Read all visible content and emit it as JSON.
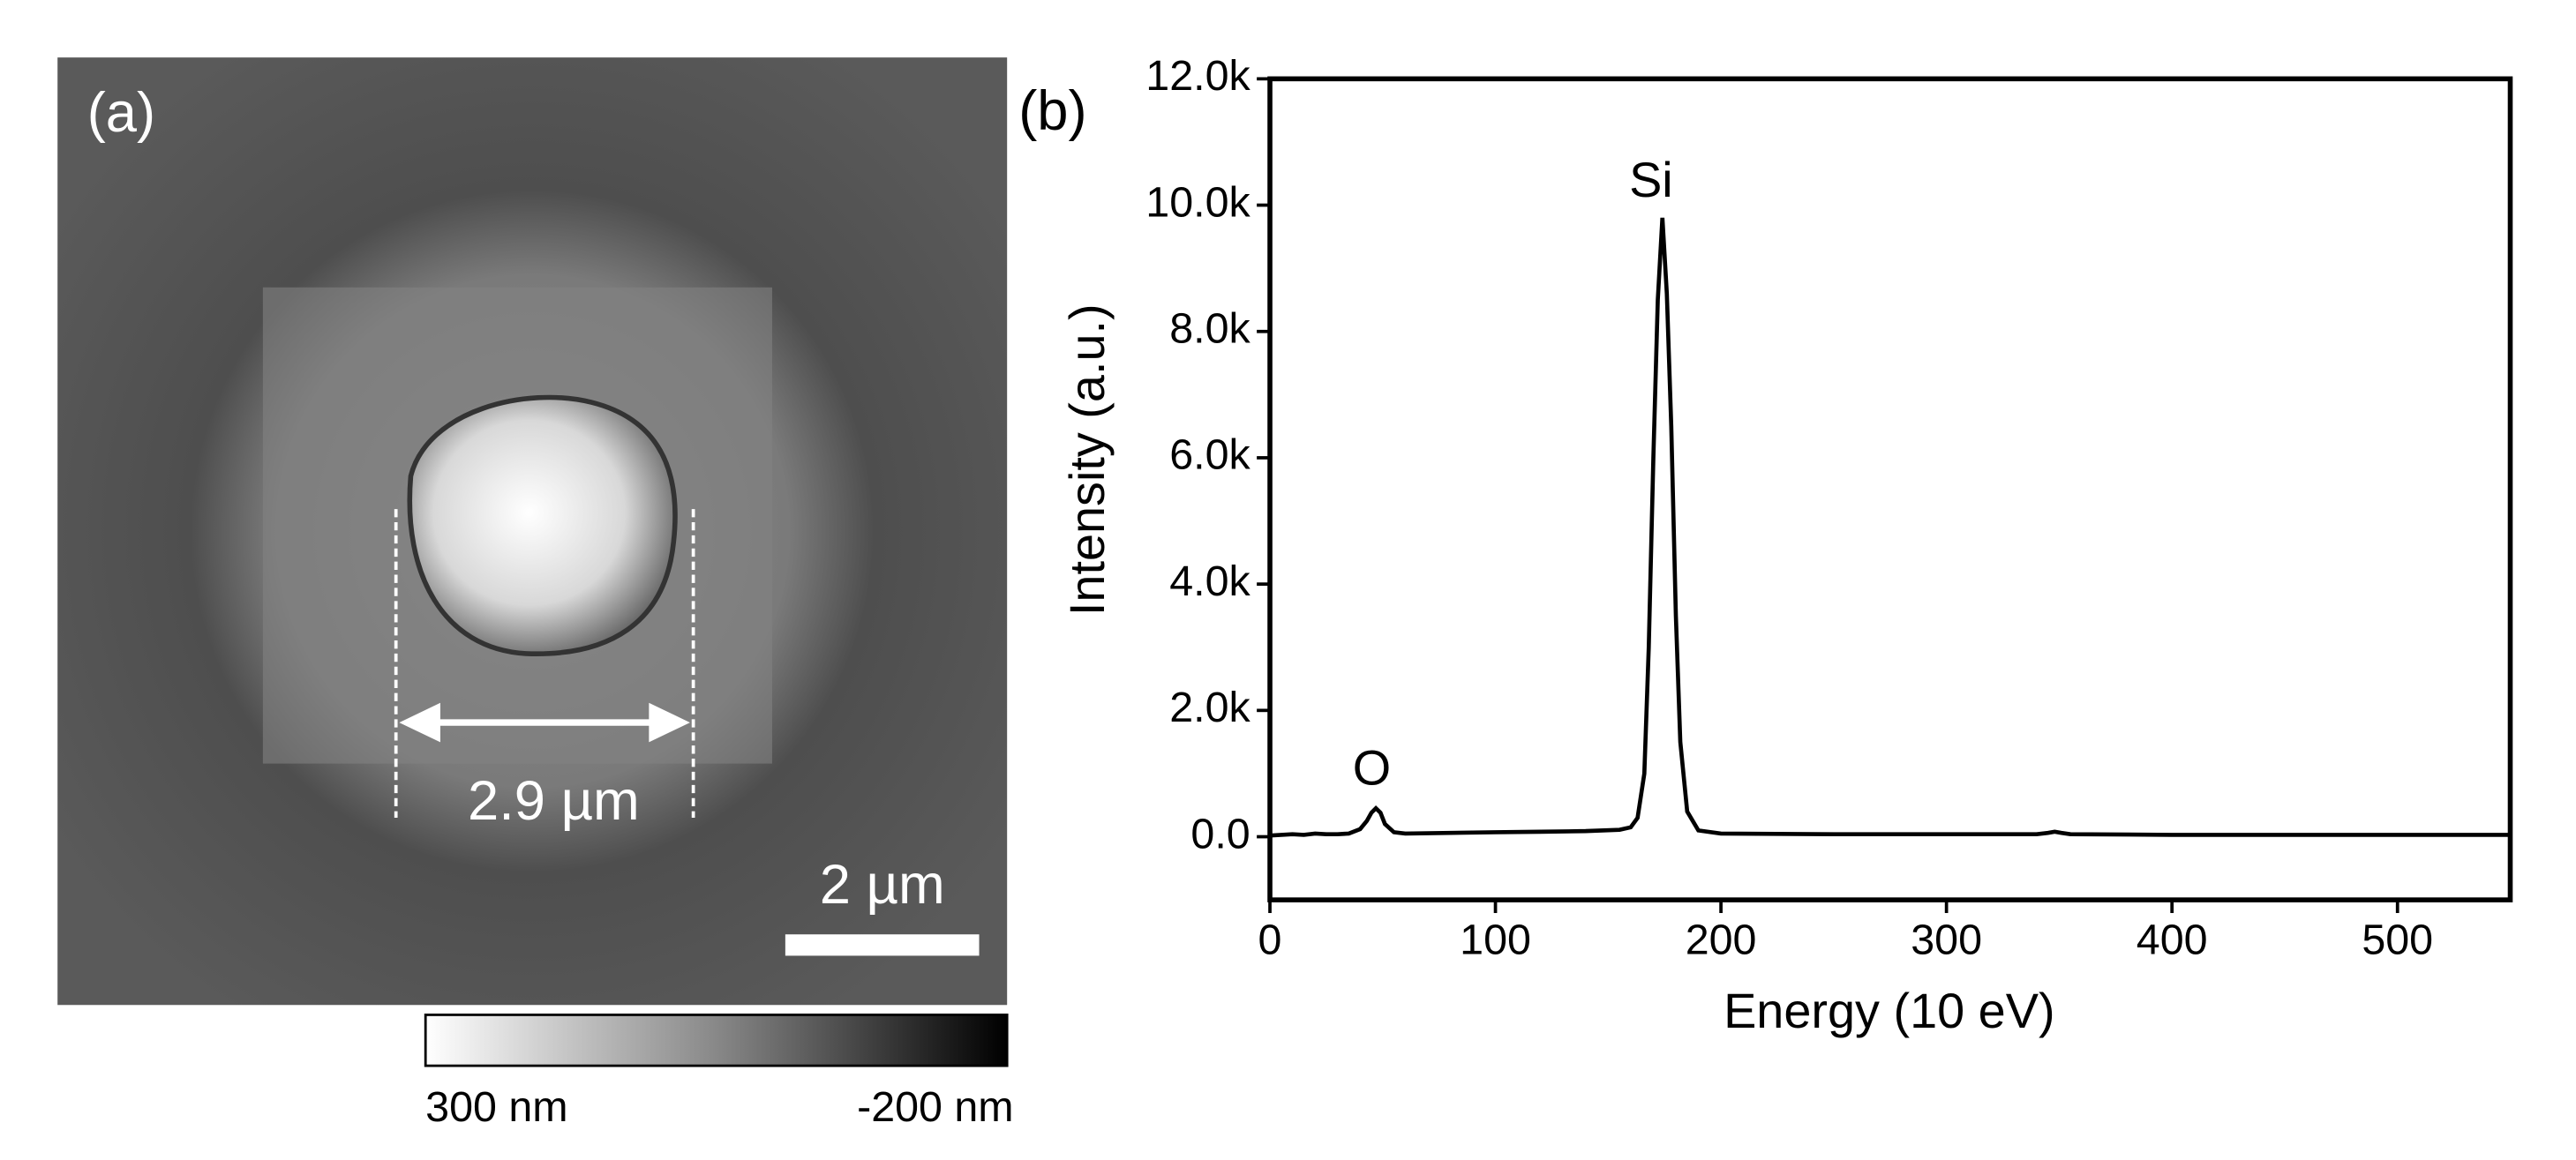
{
  "image_panel": {
    "label": "(a)",
    "measurement": "2.9 µm",
    "scale_bar": "2 µm",
    "colorbar": {
      "max_label": "300 nm",
      "min_label": "-200 nm"
    }
  },
  "chart_data": {
    "type": "line",
    "panel_label": "(b)",
    "x_label": "Energy (10 eV)",
    "y_label": "Intensity (a.u.)",
    "annotations": [
      "Si",
      "O"
    ],
    "x": [
      0,
      5,
      10,
      15,
      20,
      25,
      30,
      35,
      40,
      43,
      45,
      47,
      49,
      51,
      55,
      60,
      80,
      100,
      120,
      140,
      155,
      160,
      163,
      166,
      168,
      170,
      172,
      174,
      176,
      178,
      180,
      182,
      185,
      190,
      200,
      250,
      300,
      340,
      345,
      348,
      351,
      355,
      400,
      450,
      500,
      550
    ],
    "values": [
      20,
      30,
      40,
      30,
      50,
      40,
      40,
      50,
      120,
      250,
      380,
      450,
      380,
      200,
      70,
      50,
      60,
      70,
      80,
      90,
      110,
      150,
      300,
      1000,
      3000,
      6000,
      8500,
      9800,
      8600,
      6500,
      3500,
      1500,
      400,
      100,
      50,
      40,
      40,
      40,
      60,
      80,
      60,
      40,
      30,
      30,
      30,
      30
    ],
    "color": "#000000",
    "xlim": [
      0,
      550
    ],
    "ylim": [
      -1000,
      12000
    ],
    "xticks": [
      0,
      100,
      200,
      300,
      400,
      500
    ],
    "yticks": [
      {
        "value": 0,
        "label": "0.0"
      },
      {
        "value": 2000,
        "label": "2.0k"
      },
      {
        "value": 4000,
        "label": "4.0k"
      },
      {
        "value": 6000,
        "label": "6.0k"
      },
      {
        "value": 8000,
        "label": "8.0k"
      },
      {
        "value": 10000,
        "label": "10.0k"
      },
      {
        "value": 12000,
        "label": "12.0k"
      }
    ]
  }
}
